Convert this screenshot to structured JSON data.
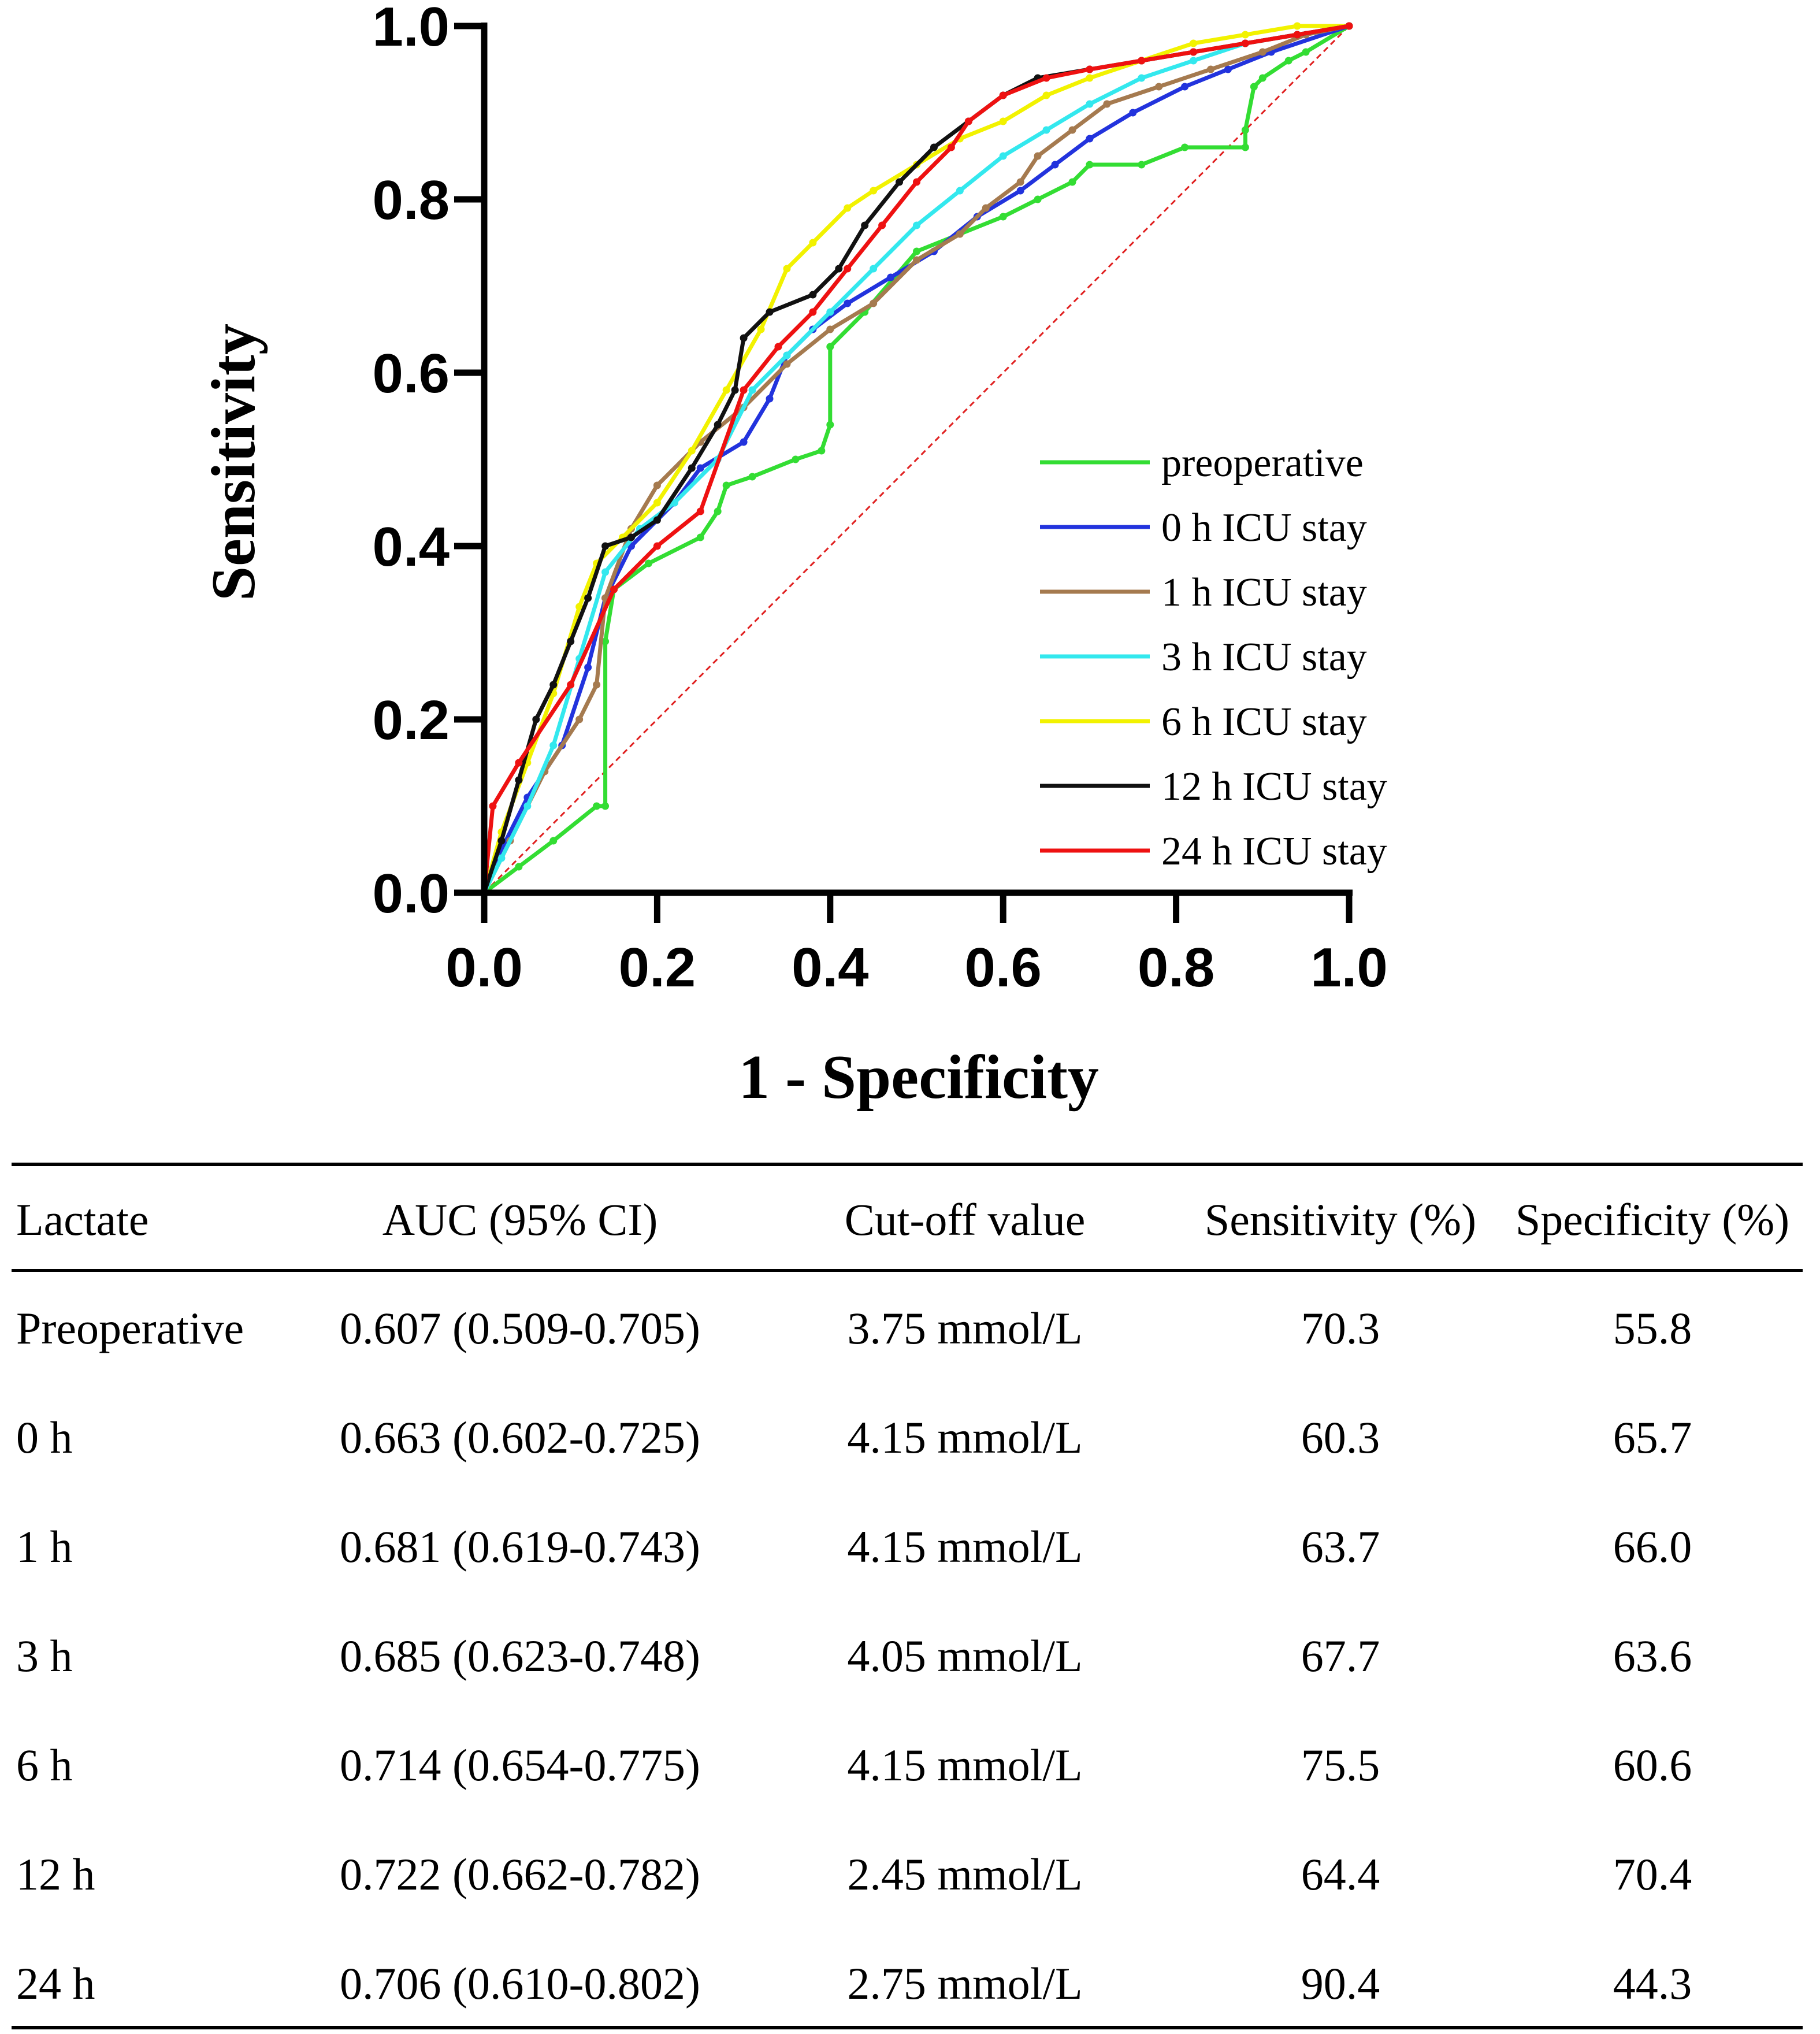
{
  "chart_data": {
    "type": "line",
    "title": "",
    "xlabel": "1 - Specificity",
    "ylabel": "Sensitivity",
    "xlim": [
      0,
      1
    ],
    "ylim": [
      0,
      1
    ],
    "xticks": [
      "0.0",
      "0.2",
      "0.4",
      "0.6",
      "0.8",
      "1.0"
    ],
    "yticks": [
      "0.0",
      "0.2",
      "0.4",
      "0.6",
      "0.8",
      "1.0"
    ],
    "legend_position": "center-right",
    "reference_line": {
      "x": [
        0,
        1
      ],
      "y": [
        0,
        1
      ],
      "color": "#e02020",
      "style": "dashed"
    },
    "series": [
      {
        "name": "preoperative",
        "color": "#33dd33",
        "x": [
          0,
          0.04,
          0.08,
          0.13,
          0.14,
          0.14,
          0.15,
          0.19,
          0.25,
          0.27,
          0.28,
          0.31,
          0.36,
          0.39,
          0.4,
          0.4,
          0.44,
          0.5,
          0.6,
          0.64,
          0.68,
          0.7,
          0.76,
          0.81,
          0.88,
          0.88,
          0.89,
          0.9,
          0.93,
          0.95,
          1
        ],
        "y": [
          0,
          0.03,
          0.06,
          0.1,
          0.1,
          0.29,
          0.35,
          0.38,
          0.41,
          0.44,
          0.47,
          0.48,
          0.5,
          0.51,
          0.54,
          0.63,
          0.67,
          0.74,
          0.78,
          0.8,
          0.82,
          0.84,
          0.84,
          0.86,
          0.86,
          0.88,
          0.93,
          0.94,
          0.96,
          0.97,
          1
        ]
      },
      {
        "name": "0 h ICU stay",
        "color": "#2233dd",
        "x": [
          0,
          0.02,
          0.05,
          0.09,
          0.12,
          0.14,
          0.17,
          0.22,
          0.25,
          0.3,
          0.33,
          0.35,
          0.38,
          0.42,
          0.47,
          0.52,
          0.57,
          0.62,
          0.66,
          0.7,
          0.75,
          0.81,
          0.86,
          0.91,
          1
        ],
        "y": [
          0,
          0.05,
          0.11,
          0.17,
          0.26,
          0.34,
          0.4,
          0.45,
          0.49,
          0.52,
          0.57,
          0.62,
          0.65,
          0.68,
          0.71,
          0.74,
          0.78,
          0.81,
          0.84,
          0.87,
          0.9,
          0.93,
          0.95,
          0.97,
          1
        ]
      },
      {
        "name": "1 h ICU stay",
        "color": "#a57a4f",
        "x": [
          0,
          0.03,
          0.07,
          0.11,
          0.13,
          0.14,
          0.17,
          0.2,
          0.25,
          0.3,
          0.35,
          0.4,
          0.45,
          0.5,
          0.55,
          0.58,
          0.62,
          0.64,
          0.68,
          0.72,
          0.78,
          0.84,
          0.9,
          0.95,
          1
        ],
        "y": [
          0,
          0.06,
          0.14,
          0.2,
          0.24,
          0.34,
          0.42,
          0.47,
          0.52,
          0.56,
          0.61,
          0.65,
          0.68,
          0.73,
          0.76,
          0.79,
          0.82,
          0.85,
          0.88,
          0.91,
          0.93,
          0.95,
          0.97,
          0.99,
          1
        ]
      },
      {
        "name": "3 h ICU stay",
        "color": "#33e8ee",
        "x": [
          0,
          0.02,
          0.05,
          0.08,
          0.11,
          0.14,
          0.18,
          0.22,
          0.27,
          0.31,
          0.35,
          0.4,
          0.45,
          0.5,
          0.55,
          0.6,
          0.65,
          0.7,
          0.76,
          0.82,
          0.88,
          0.94,
          1
        ],
        "y": [
          0,
          0.04,
          0.1,
          0.17,
          0.27,
          0.37,
          0.42,
          0.45,
          0.5,
          0.58,
          0.62,
          0.67,
          0.72,
          0.77,
          0.81,
          0.85,
          0.88,
          0.91,
          0.94,
          0.96,
          0.98,
          0.99,
          1
        ]
      },
      {
        "name": "6 h ICU stay",
        "color": "#f2f200",
        "x": [
          0,
          0.02,
          0.05,
          0.08,
          0.11,
          0.13,
          0.16,
          0.2,
          0.24,
          0.28,
          0.32,
          0.35,
          0.38,
          0.42,
          0.45,
          0.5,
          0.55,
          0.6,
          0.65,
          0.7,
          0.76,
          0.82,
          0.88,
          0.94,
          1
        ],
        "y": [
          0,
          0.07,
          0.15,
          0.23,
          0.33,
          0.38,
          0.41,
          0.45,
          0.51,
          0.58,
          0.65,
          0.72,
          0.75,
          0.79,
          0.81,
          0.84,
          0.87,
          0.89,
          0.92,
          0.94,
          0.96,
          0.98,
          0.99,
          1,
          1
        ]
      },
      {
        "name": "12 h ICU stay",
        "color": "#111111",
        "x": [
          0,
          0.02,
          0.04,
          0.06,
          0.08,
          0.1,
          0.12,
          0.14,
          0.17,
          0.2,
          0.24,
          0.27,
          0.29,
          0.3,
          0.33,
          0.38,
          0.41,
          0.44,
          0.48,
          0.52,
          0.56,
          0.6,
          0.64,
          0.7,
          0.76,
          0.82,
          0.88,
          0.94,
          1
        ],
        "y": [
          0,
          0.06,
          0.13,
          0.2,
          0.24,
          0.29,
          0.34,
          0.4,
          0.41,
          0.43,
          0.49,
          0.54,
          0.58,
          0.64,
          0.67,
          0.69,
          0.72,
          0.77,
          0.82,
          0.86,
          0.89,
          0.92,
          0.94,
          0.95,
          0.96,
          0.97,
          0.98,
          0.99,
          1
        ]
      },
      {
        "name": "24 h ICU stay",
        "color": "#ee1111",
        "x": [
          0,
          0.01,
          0.04,
          0.1,
          0.15,
          0.2,
          0.25,
          0.3,
          0.34,
          0.38,
          0.42,
          0.46,
          0.5,
          0.54,
          0.56,
          0.6,
          0.65,
          0.7,
          0.76,
          0.82,
          0.88,
          0.94,
          1
        ],
        "y": [
          0,
          0.1,
          0.15,
          0.24,
          0.35,
          0.4,
          0.44,
          0.58,
          0.63,
          0.67,
          0.72,
          0.77,
          0.82,
          0.86,
          0.89,
          0.92,
          0.94,
          0.95,
          0.96,
          0.97,
          0.98,
          0.99,
          1
        ]
      }
    ]
  },
  "table": {
    "columns": [
      "Lactate",
      "AUC (95% CI)",
      "Cut-off value",
      "Sensitivity (%)",
      "Specificity (%)"
    ],
    "rows": [
      [
        "Preoperative",
        "0.607 (0.509-0.705)",
        "3.75 mmol/L",
        "70.3",
        "55.8"
      ],
      [
        "0 h",
        "0.663 (0.602-0.725)",
        "4.15 mmol/L",
        "60.3",
        "65.7"
      ],
      [
        "1 h",
        "0.681 (0.619-0.743)",
        "4.15 mmol/L",
        "63.7",
        "66.0"
      ],
      [
        "3 h",
        "0.685 (0.623-0.748)",
        "4.05 mmol/L",
        "67.7",
        "63.6"
      ],
      [
        "6 h",
        "0.714 (0.654-0.775)",
        "4.15 mmol/L",
        "75.5",
        "60.6"
      ],
      [
        "12 h",
        "0.722 (0.662-0.782)",
        "2.45 mmol/L",
        "64.4",
        "70.4"
      ],
      [
        "24 h",
        "0.706 (0.610-0.802)",
        "2.75 mmol/L",
        "90.4",
        "44.3"
      ]
    ]
  }
}
